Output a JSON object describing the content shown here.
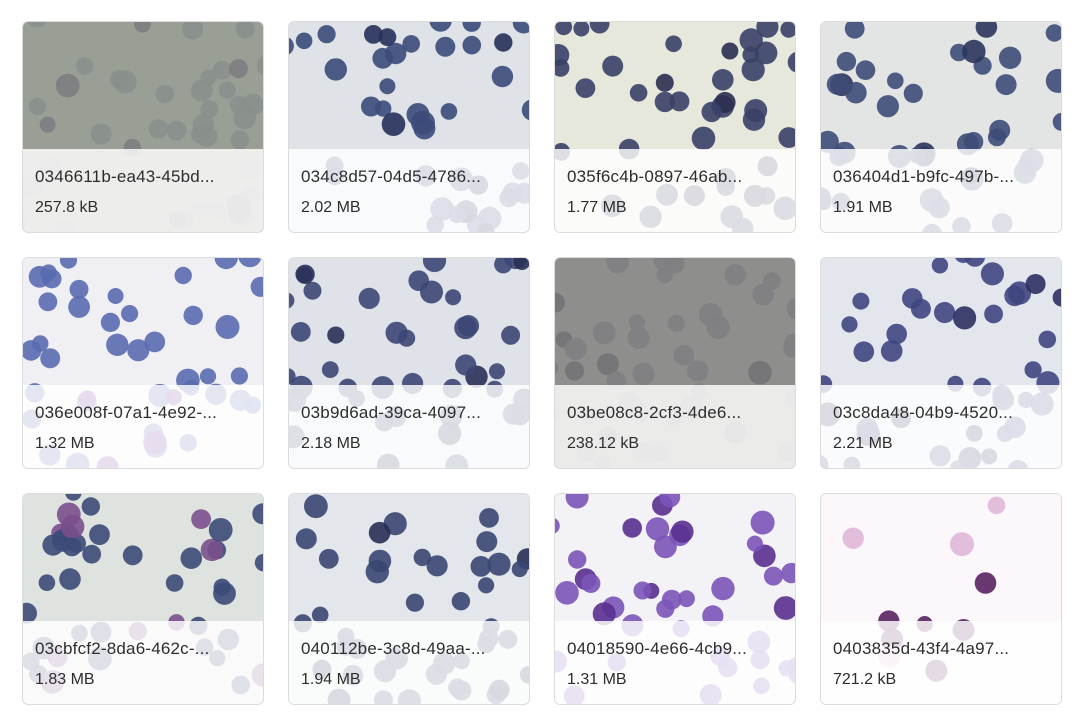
{
  "items": [
    {
      "name": "0346611b-ea43-45bd...",
      "size": "257.8 kB"
    },
    {
      "name": "034c8d57-04d5-4786...",
      "size": "2.02 MB"
    },
    {
      "name": "035f6c4b-0897-46ab...",
      "size": "1.77 MB"
    },
    {
      "name": "036404d1-b9fc-497b-...",
      "size": "1.91 MB"
    },
    {
      "name": "036e008f-07a1-4e92-...",
      "size": "1.32 MB"
    },
    {
      "name": "03b9d6ad-39ca-4097...",
      "size": "2.18 MB"
    },
    {
      "name": "03be08c8-2cf3-4de6...",
      "size": "238.12 kB"
    },
    {
      "name": "03c8da48-04b9-4520...",
      "size": "2.21 MB"
    },
    {
      "name": "03cbfcf2-8da6-462c-...",
      "size": "1.83 MB"
    },
    {
      "name": "040112be-3c8d-49aa-...",
      "size": "1.94 MB"
    },
    {
      "name": "04018590-4e66-4cb9...",
      "size": "1.31 MB"
    },
    {
      "name": "0403835d-43f4-4a97...",
      "size": "721.2 kB"
    }
  ]
}
